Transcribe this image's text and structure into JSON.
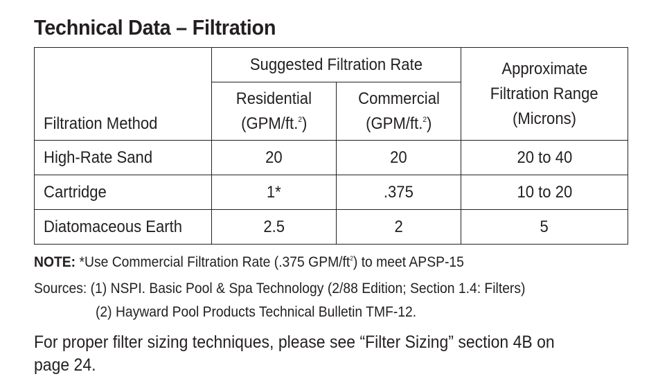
{
  "title": "Technical Data – Filtration",
  "table": {
    "header": {
      "method": "Filtration Method",
      "group": "Suggested Filtration Rate",
      "residential_line1": "Residential",
      "residential_line2": "(GPM/ft.",
      "residential_sup": "2",
      "residential_close": ")",
      "commercial_line1": "Commercial",
      "commercial_line2": "(GPM/ft.",
      "commercial_sup": "2",
      "commercial_close": ")",
      "range_line1": "Approximate",
      "range_line2": "Filtration Range",
      "range_line3": "(Microns)"
    },
    "rows": [
      {
        "method": "High-Rate Sand",
        "residential": "20",
        "commercial": "20",
        "range": "20 to 40"
      },
      {
        "method": "Cartridge",
        "residential": "1*",
        "commercial": ".375",
        "range": "10 to 20"
      },
      {
        "method": "Diatomaceous Earth",
        "residential": "2.5",
        "commercial": "2",
        "range": "5"
      }
    ]
  },
  "note": {
    "label": "NOTE:",
    "text_before": " *Use Commercial Filtration Rate (.375 GPM/ft",
    "sup": "2",
    "text_after": ") to meet APSP-15"
  },
  "sources": {
    "line1": "Sources: (1) NSPI. Basic Pool & Spa Technology (2/88 Edition; Section 1.4: Filters)",
    "line2": "(2) Hayward Pool Products Technical Bulletin TMF-12."
  },
  "sizing_text": "For proper filter sizing techniques, please see “Filter Sizing” section 4B on page 24."
}
